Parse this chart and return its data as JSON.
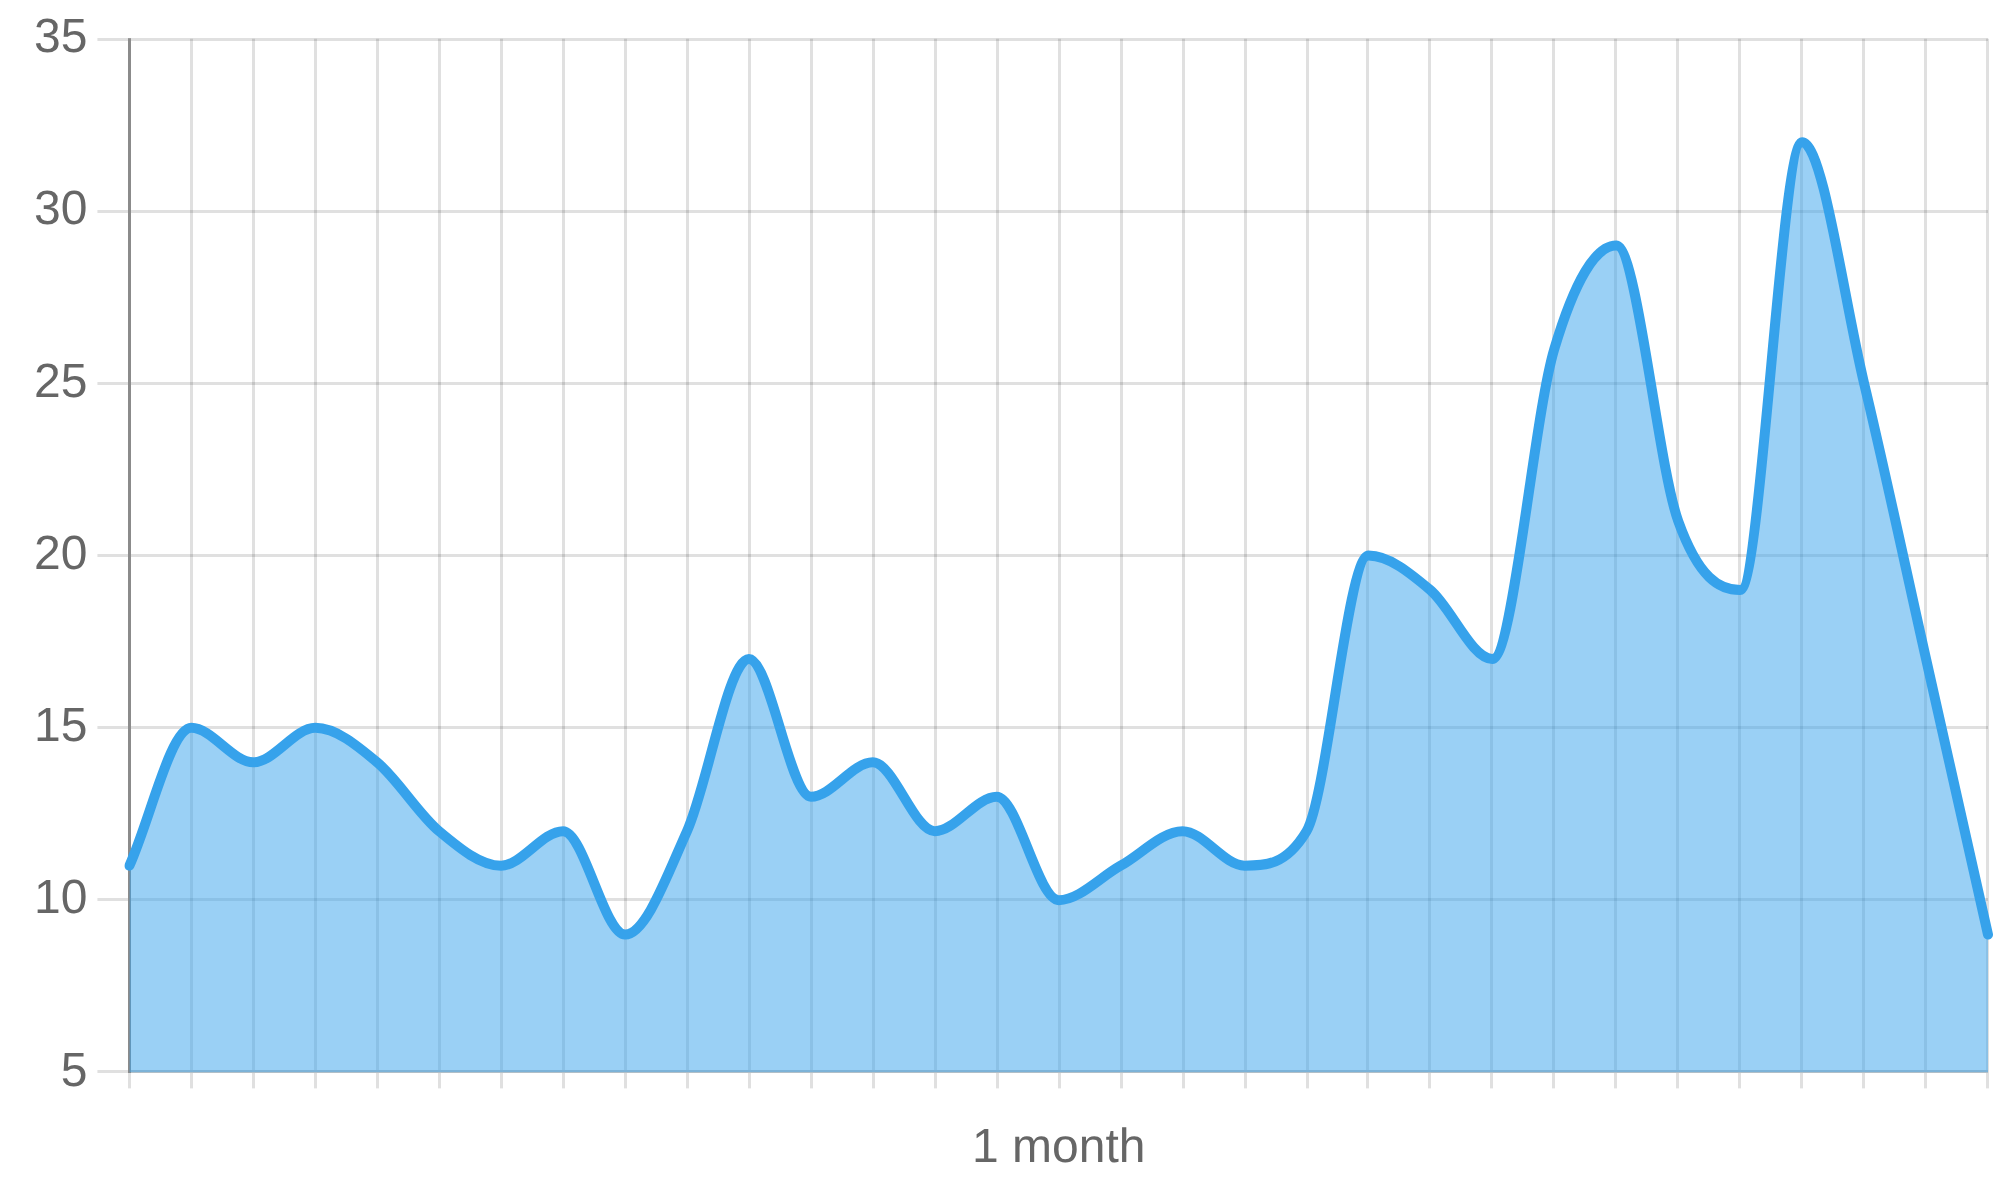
{
  "chart_data": {
    "type": "area",
    "xlabel": "1 month",
    "categories": [
      null,
      null,
      null,
      null,
      null,
      null,
      null,
      null,
      null,
      null,
      null,
      null,
      null,
      null,
      null,
      null,
      null,
      null,
      null,
      null,
      null,
      null,
      null,
      null,
      null,
      null,
      null,
      null,
      null,
      null,
      null
    ],
    "series": [
      {
        "color": "#36a2eb",
        "values": [
          11,
          15,
          14,
          15,
          14,
          12,
          11,
          12,
          9,
          12,
          17,
          13,
          14,
          12,
          13,
          10,
          11,
          12,
          11,
          12,
          20,
          19,
          17,
          26,
          29,
          21,
          19,
          32,
          25,
          17,
          9
        ]
      }
    ],
    "ylim": [
      5,
      35
    ],
    "yticks": [
      5,
      10,
      15,
      20,
      25,
      30,
      35
    ],
    "grid": true,
    "tick_labels": "y"
  }
}
